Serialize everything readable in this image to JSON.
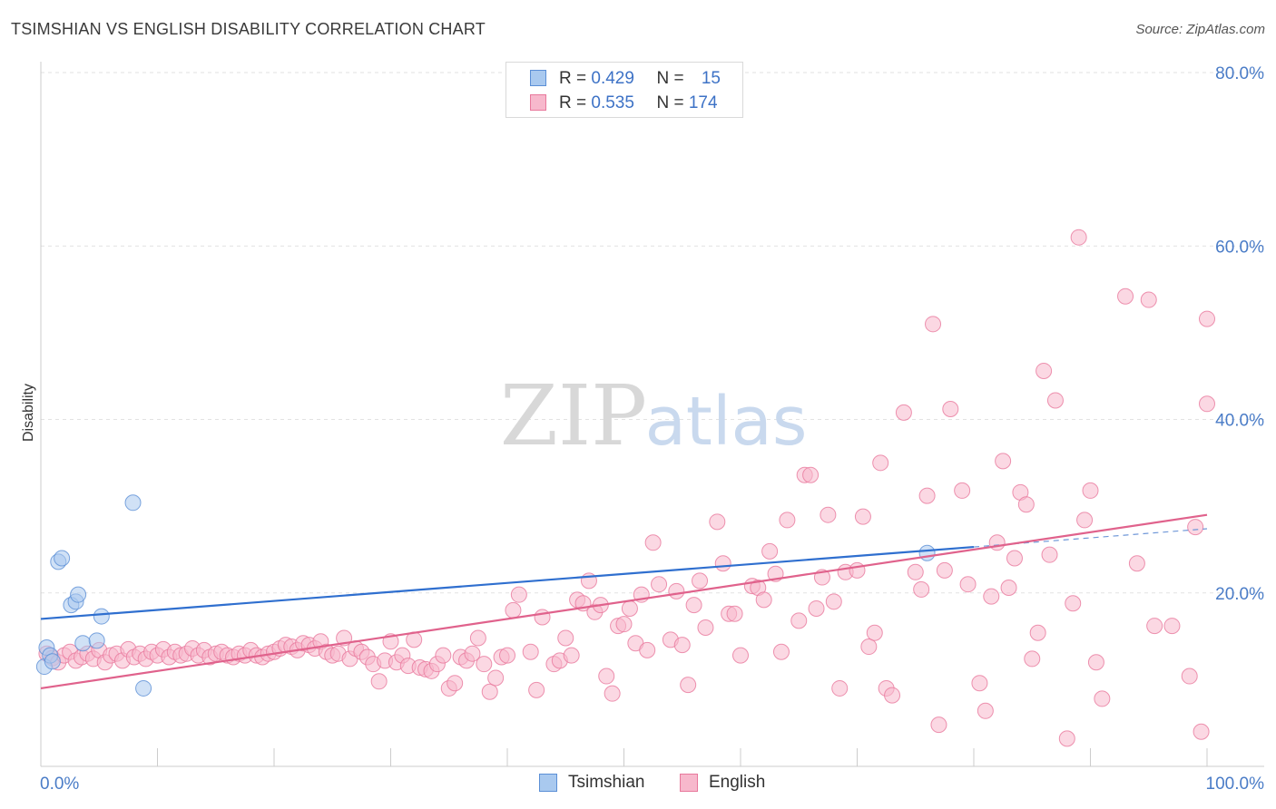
{
  "title": "TSIMSHIAN VS ENGLISH DISABILITY CORRELATION CHART",
  "source": "Source: ZipAtlas.com",
  "watermark": {
    "zip": "ZIP",
    "atlas": "atlas"
  },
  "legend_top": [
    {
      "r_label": "R = ",
      "r_value": "0.429",
      "n_label": "N = ",
      "n_value": "15",
      "color": "#a9c9ef",
      "border": "#5b8fd6"
    },
    {
      "r_label": "R = ",
      "r_value": "0.535",
      "n_label": "N = ",
      "n_value": "174",
      "color": "#f7b8cc",
      "border": "#e8789c"
    }
  ],
  "legend_bottom": [
    {
      "label": "Tsimshian",
      "color": "#a9c9ef",
      "border": "#5b8fd6"
    },
    {
      "label": "English",
      "color": "#f7b8cc",
      "border": "#e8789c"
    }
  ],
  "chart_data": {
    "type": "scatter",
    "title": "TSIMSHIAN VS ENGLISH DISABILITY CORRELATION CHART",
    "xlabel": "",
    "ylabel": "Disability",
    "xlim": [
      0,
      100
    ],
    "ylim": [
      0,
      80
    ],
    "x_tick_labels": [
      "0.0%",
      "100.0%"
    ],
    "y_ticks": [
      20,
      40,
      60,
      80
    ],
    "y_tick_labels": [
      "20.0%",
      "40.0%",
      "60.0%",
      "80.0%"
    ],
    "grid": true,
    "series": [
      {
        "name": "Tsimshian",
        "color": "#5b8fd6",
        "fill": "#a9c9ef",
        "points": [
          [
            0.3,
            11.5
          ],
          [
            0.5,
            13.7
          ],
          [
            0.8,
            12.8
          ],
          [
            1.0,
            12.1
          ],
          [
            1.5,
            23.6
          ],
          [
            1.8,
            24.0
          ],
          [
            2.6,
            18.6
          ],
          [
            3.0,
            19.0
          ],
          [
            3.2,
            19.8
          ],
          [
            3.6,
            14.2
          ],
          [
            4.8,
            14.5
          ],
          [
            5.2,
            17.3
          ],
          [
            7.9,
            30.4
          ],
          [
            8.8,
            9.0
          ],
          [
            76.0,
            24.6
          ]
        ],
        "trend": {
          "x": [
            0,
            80
          ],
          "y": [
            17.0,
            25.3
          ]
        },
        "trend_dashed": {
          "x": [
            80,
            100
          ],
          "y": [
            25.3,
            27.4
          ]
        }
      },
      {
        "name": "English",
        "color": "#e8789c",
        "fill": "#f7b8cc",
        "points": [
          [
            0.5,
            13.0
          ],
          [
            1.0,
            12.5
          ],
          [
            1.5,
            12.0
          ],
          [
            2.0,
            12.8
          ],
          [
            2.5,
            13.2
          ],
          [
            3.0,
            12.2
          ],
          [
            3.5,
            12.6
          ],
          [
            4.0,
            13.0
          ],
          [
            4.5,
            12.4
          ],
          [
            5.0,
            13.4
          ],
          [
            5.5,
            12.0
          ],
          [
            6.0,
            12.8
          ],
          [
            6.5,
            13.0
          ],
          [
            7.0,
            12.2
          ],
          [
            7.5,
            13.5
          ],
          [
            8.0,
            12.6
          ],
          [
            8.5,
            13.0
          ],
          [
            9.0,
            12.4
          ],
          [
            9.5,
            13.2
          ],
          [
            10.0,
            12.8
          ],
          [
            10.5,
            13.5
          ],
          [
            11.0,
            12.6
          ],
          [
            11.5,
            13.2
          ],
          [
            12.0,
            12.8
          ],
          [
            12.5,
            13.0
          ],
          [
            13.0,
            13.6
          ],
          [
            13.5,
            12.8
          ],
          [
            14.0,
            13.4
          ],
          [
            14.5,
            12.6
          ],
          [
            15.0,
            13.0
          ],
          [
            15.5,
            13.2
          ],
          [
            16.0,
            12.8
          ],
          [
            16.5,
            12.6
          ],
          [
            17.0,
            13.0
          ],
          [
            17.5,
            12.8
          ],
          [
            18.0,
            13.4
          ],
          [
            18.5,
            12.8
          ],
          [
            19.0,
            12.6
          ],
          [
            19.5,
            13.0
          ],
          [
            20.0,
            13.2
          ],
          [
            20.5,
            13.6
          ],
          [
            21.0,
            14.0
          ],
          [
            21.5,
            13.8
          ],
          [
            22.0,
            13.4
          ],
          [
            22.5,
            14.2
          ],
          [
            23.0,
            14.0
          ],
          [
            23.5,
            13.6
          ],
          [
            24.0,
            14.4
          ],
          [
            24.5,
            13.2
          ],
          [
            25.0,
            12.8
          ],
          [
            25.5,
            13.0
          ],
          [
            26.0,
            14.8
          ],
          [
            26.5,
            12.4
          ],
          [
            27.0,
            13.6
          ],
          [
            27.5,
            13.2
          ],
          [
            28.0,
            12.6
          ],
          [
            28.5,
            11.8
          ],
          [
            29.0,
            9.8
          ],
          [
            29.5,
            12.2
          ],
          [
            30.0,
            14.4
          ],
          [
            30.5,
            12.0
          ],
          [
            31.0,
            12.8
          ],
          [
            31.5,
            11.6
          ],
          [
            32.0,
            14.6
          ],
          [
            32.5,
            11.4
          ],
          [
            33.0,
            11.2
          ],
          [
            33.5,
            11.0
          ],
          [
            34.0,
            11.8
          ],
          [
            34.5,
            12.8
          ],
          [
            35.0,
            9.0
          ],
          [
            35.5,
            9.6
          ],
          [
            36.0,
            12.6
          ],
          [
            36.5,
            12.2
          ],
          [
            37.0,
            13.0
          ],
          [
            37.5,
            14.8
          ],
          [
            38.0,
            11.8
          ],
          [
            38.5,
            8.6
          ],
          [
            39.0,
            10.2
          ],
          [
            39.5,
            12.6
          ],
          [
            40.0,
            12.8
          ],
          [
            40.5,
            18.0
          ],
          [
            41.0,
            19.8
          ],
          [
            42.0,
            13.2
          ],
          [
            42.5,
            8.8
          ],
          [
            43.0,
            17.2
          ],
          [
            44.0,
            11.8
          ],
          [
            44.5,
            12.2
          ],
          [
            45.0,
            14.8
          ],
          [
            45.5,
            12.8
          ],
          [
            46.0,
            19.2
          ],
          [
            46.5,
            18.8
          ],
          [
            47.0,
            21.4
          ],
          [
            47.5,
            17.8
          ],
          [
            48.0,
            18.6
          ],
          [
            48.5,
            10.4
          ],
          [
            49.0,
            8.4
          ],
          [
            49.5,
            16.2
          ],
          [
            50.0,
            16.4
          ],
          [
            50.5,
            18.2
          ],
          [
            51.0,
            14.2
          ],
          [
            51.5,
            19.8
          ],
          [
            52.0,
            13.4
          ],
          [
            52.5,
            25.8
          ],
          [
            53.0,
            21.0
          ],
          [
            54.0,
            14.6
          ],
          [
            54.5,
            20.2
          ],
          [
            55.0,
            14.0
          ],
          [
            55.5,
            9.4
          ],
          [
            56.0,
            18.6
          ],
          [
            56.5,
            21.4
          ],
          [
            57.0,
            16.0
          ],
          [
            58.0,
            28.2
          ],
          [
            58.5,
            23.4
          ],
          [
            59.0,
            17.6
          ],
          [
            59.5,
            17.6
          ],
          [
            60.0,
            12.8
          ],
          [
            61.0,
            20.8
          ],
          [
            61.5,
            20.6
          ],
          [
            62.0,
            19.2
          ],
          [
            62.5,
            24.8
          ],
          [
            63.0,
            22.2
          ],
          [
            63.5,
            13.2
          ],
          [
            64.0,
            28.4
          ],
          [
            65.0,
            16.8
          ],
          [
            65.5,
            33.6
          ],
          [
            66.0,
            33.6
          ],
          [
            66.5,
            18.2
          ],
          [
            67.0,
            21.8
          ],
          [
            67.5,
            29.0
          ],
          [
            68.0,
            19.0
          ],
          [
            68.5,
            9.0
          ],
          [
            69.0,
            22.4
          ],
          [
            70.0,
            22.6
          ],
          [
            70.5,
            28.8
          ],
          [
            71.0,
            13.8
          ],
          [
            71.5,
            15.4
          ],
          [
            72.0,
            35.0
          ],
          [
            72.5,
            9.0
          ],
          [
            73.0,
            8.2
          ],
          [
            74.0,
            40.8
          ],
          [
            75.0,
            22.4
          ],
          [
            75.5,
            20.4
          ],
          [
            76.0,
            31.2
          ],
          [
            76.5,
            51.0
          ],
          [
            77.0,
            4.8
          ],
          [
            77.5,
            22.6
          ],
          [
            78.0,
            41.2
          ],
          [
            79.0,
            31.8
          ],
          [
            79.5,
            21.0
          ],
          [
            80.5,
            9.6
          ],
          [
            81.0,
            6.4
          ],
          [
            81.5,
            19.6
          ],
          [
            82.0,
            25.8
          ],
          [
            82.5,
            35.2
          ],
          [
            83.0,
            20.6
          ],
          [
            83.5,
            24.0
          ],
          [
            84.0,
            31.6
          ],
          [
            84.5,
            30.2
          ],
          [
            85.0,
            12.4
          ],
          [
            85.5,
            15.4
          ],
          [
            86.0,
            45.6
          ],
          [
            86.5,
            24.4
          ],
          [
            87.0,
            42.2
          ],
          [
            88.0,
            3.2
          ],
          [
            88.5,
            18.8
          ],
          [
            89.0,
            61.0
          ],
          [
            89.5,
            28.4
          ],
          [
            90.0,
            31.8
          ],
          [
            90.5,
            12.0
          ],
          [
            91.0,
            7.8
          ],
          [
            93.0,
            54.2
          ],
          [
            94.0,
            23.4
          ],
          [
            95.0,
            53.8
          ],
          [
            95.5,
            16.2
          ],
          [
            97.0,
            16.2
          ],
          [
            98.5,
            10.4
          ],
          [
            99.0,
            27.6
          ],
          [
            99.5,
            4.0
          ],
          [
            100.0,
            51.6
          ],
          [
            100.0,
            41.8
          ]
        ],
        "trend": {
          "x": [
            0,
            100
          ],
          "y": [
            9.0,
            29.0
          ]
        }
      }
    ]
  }
}
